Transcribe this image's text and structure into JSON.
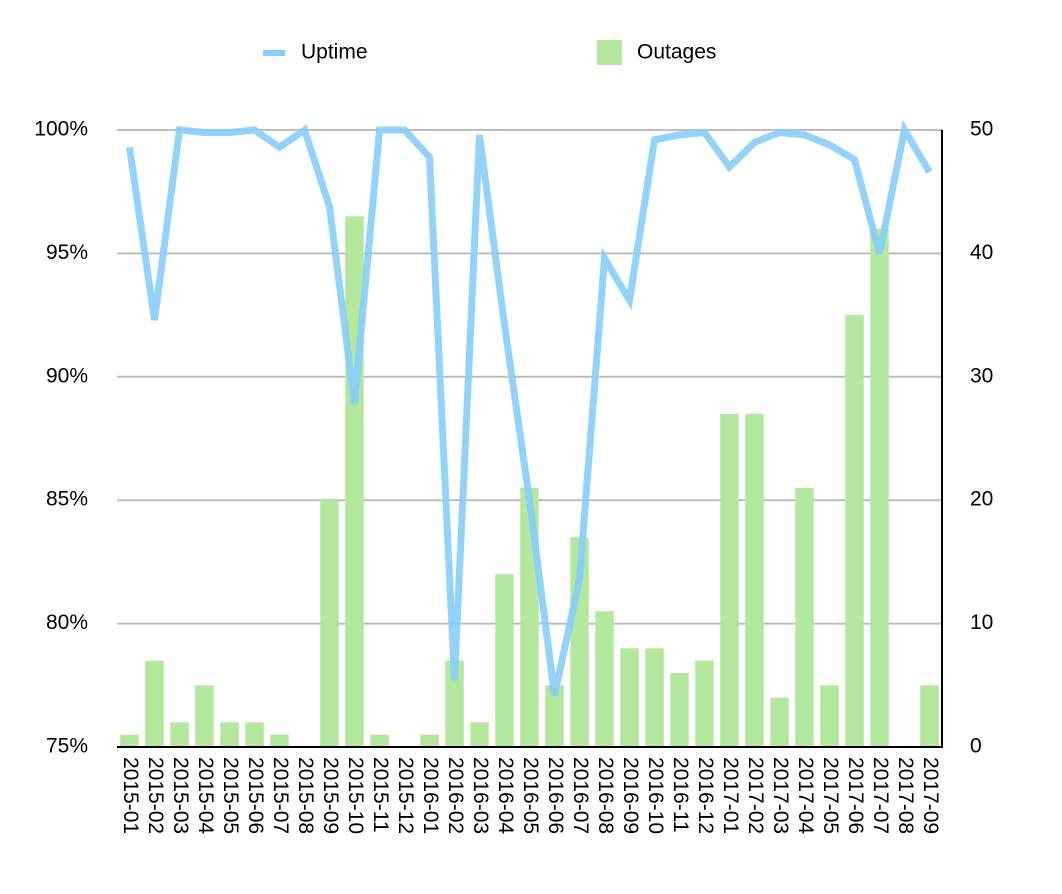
{
  "chart_data": {
    "type": "combo",
    "categories": [
      "2015-01",
      "2015-02",
      "2015-03",
      "2015-04",
      "2015-05",
      "2015-06",
      "2015-07",
      "2015-08",
      "2015-09",
      "2015-10",
      "2015-11",
      "2015-12",
      "2016-01",
      "2016-02",
      "2016-03",
      "2016-04",
      "2016-05",
      "2016-06",
      "2016-07",
      "2016-08",
      "2016-09",
      "2016-10",
      "2016-11",
      "2016-12",
      "2017-01",
      "2017-02",
      "2017-03",
      "2017-04",
      "2017-05",
      "2017-06",
      "2017-07",
      "2017-08",
      "2017-09"
    ],
    "series": [
      {
        "name": "Uptime",
        "type": "line",
        "color": "#87cefa",
        "values": [
          99.3,
          92.3,
          100,
          99.9,
          99.9,
          100,
          99.3,
          100,
          96.9,
          88.9,
          100,
          100,
          98.9,
          77.7,
          99.8,
          92.1,
          85,
          77.1,
          81.8,
          94.8,
          93.1,
          99.6,
          99.8,
          99.9,
          98.5,
          99.5,
          99.9,
          99.8,
          99.4,
          98.8,
          95,
          100,
          98.3
        ]
      },
      {
        "name": "Outages",
        "type": "bar",
        "axis": "y2",
        "color": "#b3e89e",
        "values": [
          1,
          7,
          2,
          5,
          2,
          2,
          1,
          0,
          20,
          43,
          1,
          0,
          1,
          7,
          2,
          14,
          21,
          5,
          17,
          11,
          8,
          8,
          6,
          7,
          27,
          27,
          4,
          21,
          5,
          35,
          42,
          0,
          5
        ]
      }
    ],
    "ylim": [
      75,
      100
    ],
    "yticks": [
      {
        "value": 75,
        "label": "75%"
      },
      {
        "value": 80,
        "label": "80%"
      },
      {
        "value": 85,
        "label": "85%"
      },
      {
        "value": 90,
        "label": "90%"
      },
      {
        "value": 95,
        "label": "95%"
      },
      {
        "value": 100,
        "label": "100%"
      }
    ],
    "y2lim": [
      0,
      50
    ],
    "y2ticks": [
      0,
      10,
      20,
      30,
      40,
      50
    ],
    "grid": true,
    "legend": "top"
  }
}
